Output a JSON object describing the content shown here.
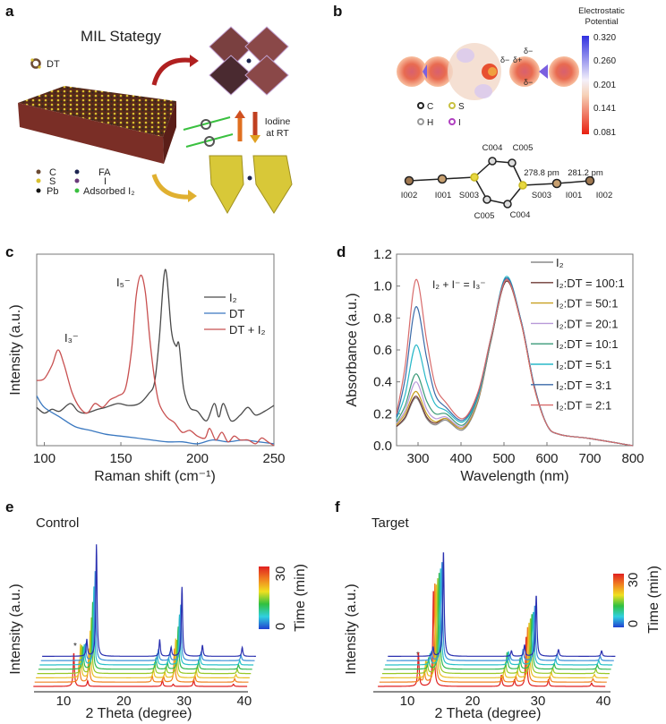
{
  "panels": {
    "a": {
      "label": "a",
      "title": "MIL Stategy",
      "dt_label": "DT",
      "iodine_label_line1": "Iodine",
      "iodine_label_line2": "at RT",
      "legend": {
        "c": "C",
        "s": "S",
        "pb": "Pb",
        "fa": "FA",
        "i": "I",
        "adsorbed": "Adsorbed I₂"
      },
      "colors": {
        "c": "#6b4a33",
        "s": "#d8c030",
        "pb": "#151515",
        "fa": "#1c2450",
        "i": "#6a3a7a",
        "adsorbed": "#3ac040",
        "slab": "#7a2e26"
      }
    },
    "b": {
      "label": "b",
      "colorbar_title_line1": "Electrostatic",
      "colorbar_title_line2": "Potential",
      "colorbar_ticks": [
        "0.320",
        "0.260",
        "0.201",
        "0.141",
        "0.081"
      ],
      "delta_labels": [
        "δ−",
        "δ+",
        "δ−",
        "δ−"
      ],
      "legend": {
        "c": "C",
        "s": "S",
        "h": "H",
        "i": "I"
      },
      "atoms": [
        "I002",
        "I001",
        "S003",
        "C004",
        "C005",
        "S003",
        "I001",
        "I002",
        "C005",
        "C004"
      ],
      "bond_lengths": [
        "278.8 pm",
        "281.2 pm"
      ]
    }
  },
  "chart_data": [
    {
      "panel": "c",
      "type": "line",
      "xlabel": "Raman shift (cm⁻¹)",
      "ylabel": "Intensity (a.u.)",
      "xlim": [
        95,
        250
      ],
      "xticks": [
        "100",
        "150",
        "200",
        "250"
      ],
      "annotations": [
        "I₃⁻",
        "I₅⁻"
      ],
      "legend_position": "top-right",
      "series": [
        {
          "name": "I₂",
          "color": "#4a4a4a",
          "points": [
            [
              95,
              0.2
            ],
            [
              100,
              0.17
            ],
            [
              105,
              0.19
            ],
            [
              110,
              0.18
            ],
            [
              117,
              0.22
            ],
            [
              122,
              0.18
            ],
            [
              127,
              0.17
            ],
            [
              135,
              0.19
            ],
            [
              140,
              0.2
            ],
            [
              148,
              0.22
            ],
            [
              155,
              0.21
            ],
            [
              162,
              0.22
            ],
            [
              168,
              0.27
            ],
            [
              172,
              0.33
            ],
            [
              175,
              0.55
            ],
            [
              179,
              0.92
            ],
            [
              183,
              0.6
            ],
            [
              186,
              0.52
            ],
            [
              188,
              0.53
            ],
            [
              191,
              0.3
            ],
            [
              195,
              0.2
            ],
            [
              200,
              0.18
            ],
            [
              206,
              0.13
            ],
            [
              211,
              0.22
            ],
            [
              214,
              0.15
            ],
            [
              217,
              0.22
            ],
            [
              222,
              0.13
            ],
            [
              228,
              0.16
            ],
            [
              233,
              0.2
            ],
            [
              238,
              0.16
            ],
            [
              244,
              0.18
            ],
            [
              250,
              0.21
            ]
          ]
        },
        {
          "name": "DT",
          "color": "#3a78c0",
          "points": [
            [
              95,
              0.26
            ],
            [
              100,
              0.2
            ],
            [
              110,
              0.15
            ],
            [
              120,
              0.1
            ],
            [
              130,
              0.08
            ],
            [
              140,
              0.06
            ],
            [
              150,
              0.05
            ],
            [
              160,
              0.04
            ],
            [
              170,
              0.03
            ],
            [
              180,
              0.02
            ],
            [
              190,
              0.02
            ],
            [
              200,
              0.01
            ],
            [
              210,
              0.03
            ],
            [
              220,
              0.02
            ],
            [
              230,
              0.03
            ],
            [
              240,
              0.02
            ],
            [
              250,
              0.01
            ]
          ]
        },
        {
          "name": "DT + I₂",
          "color": "#c85050",
          "points": [
            [
              95,
              0.34
            ],
            [
              100,
              0.35
            ],
            [
              105,
              0.42
            ],
            [
              109,
              0.5
            ],
            [
              113,
              0.42
            ],
            [
              118,
              0.28
            ],
            [
              123,
              0.2
            ],
            [
              128,
              0.17
            ],
            [
              133,
              0.22
            ],
            [
              138,
              0.2
            ],
            [
              143,
              0.24
            ],
            [
              148,
              0.26
            ],
            [
              153,
              0.3
            ],
            [
              157,
              0.5
            ],
            [
              160,
              0.78
            ],
            [
              163,
              0.89
            ],
            [
              166,
              0.8
            ],
            [
              169,
              0.55
            ],
            [
              172,
              0.35
            ],
            [
              175,
              0.22
            ],
            [
              180,
              0.15
            ],
            [
              185,
              0.12
            ],
            [
              190,
              0.07
            ],
            [
              195,
              0.08
            ],
            [
              200,
              0.05
            ],
            [
              205,
              0.04
            ],
            [
              208,
              0.09
            ],
            [
              212,
              0.03
            ],
            [
              216,
              0.07
            ],
            [
              220,
              0.02
            ],
            [
              224,
              0.05
            ],
            [
              228,
              0.03
            ],
            [
              233,
              0.03
            ],
            [
              238,
              0.01
            ],
            [
              242,
              0.04
            ],
            [
              246,
              0.02
            ],
            [
              250,
              0.0
            ]
          ]
        }
      ]
    },
    {
      "panel": "d",
      "type": "line",
      "xlabel": "Wavelength (nm)",
      "ylabel": "Absorbance  (a.u.)",
      "xlim": [
        250,
        800
      ],
      "ylim": [
        0,
        1.2
      ],
      "xticks": [
        "300",
        "400",
        "500",
        "600",
        "700",
        "800"
      ],
      "yticks": [
        "0.0",
        "0.2",
        "0.4",
        "0.6",
        "0.8",
        "1.0",
        "1.2"
      ],
      "annotation": "I₂ + I⁻ = I₃⁻",
      "legend_position": "top-right",
      "x": [
        250,
        270,
        295,
        320,
        340,
        365,
        405,
        440,
        470,
        505,
        540,
        570,
        600,
        630,
        700,
        800
      ],
      "series": [
        {
          "name": "I₂",
          "color": "#8a8a8a",
          "values": [
            0.12,
            0.17,
            0.3,
            0.17,
            0.13,
            0.16,
            0.1,
            0.28,
            0.66,
            1.03,
            0.77,
            0.37,
            0.13,
            0.07,
            0.045,
            0.0
          ]
        },
        {
          "name": "I₂:DT = 100:1",
          "color": "#6e3a34",
          "values": [
            0.12,
            0.18,
            0.31,
            0.18,
            0.14,
            0.17,
            0.11,
            0.29,
            0.66,
            1.03,
            0.77,
            0.37,
            0.13,
            0.07,
            0.045,
            0.0
          ]
        },
        {
          "name": "I₂:DT = 50:1",
          "color": "#c8a020",
          "values": [
            0.13,
            0.2,
            0.34,
            0.2,
            0.15,
            0.17,
            0.11,
            0.29,
            0.67,
            1.04,
            0.77,
            0.37,
            0.13,
            0.07,
            0.045,
            0.0
          ]
        },
        {
          "name": "I₂:DT = 20:1",
          "color": "#b89ad8",
          "values": [
            0.14,
            0.22,
            0.4,
            0.23,
            0.17,
            0.18,
            0.12,
            0.3,
            0.67,
            1.04,
            0.78,
            0.38,
            0.13,
            0.07,
            0.045,
            0.0
          ]
        },
        {
          "name": "I₂:DT = 10:1",
          "color": "#3a9a78",
          "values": [
            0.15,
            0.25,
            0.45,
            0.28,
            0.2,
            0.2,
            0.13,
            0.31,
            0.67,
            1.05,
            0.78,
            0.38,
            0.13,
            0.07,
            0.045,
            0.0
          ]
        },
        {
          "name": "I₂:DT = 5:1",
          "color": "#28b8c8",
          "values": [
            0.17,
            0.32,
            0.63,
            0.4,
            0.26,
            0.22,
            0.15,
            0.32,
            0.68,
            1.06,
            0.78,
            0.38,
            0.13,
            0.07,
            0.045,
            0.0
          ]
        },
        {
          "name": "I₂:DT = 3:1",
          "color": "#3a6aa8",
          "values": [
            0.18,
            0.42,
            0.87,
            0.55,
            0.32,
            0.24,
            0.16,
            0.33,
            0.68,
            1.05,
            0.78,
            0.38,
            0.13,
            0.07,
            0.045,
            0.0
          ]
        },
        {
          "name": "I₂:DT = 2:1",
          "color": "#d86a6a",
          "values": [
            0.2,
            0.5,
            1.04,
            0.66,
            0.38,
            0.27,
            0.17,
            0.34,
            0.68,
            1.04,
            0.77,
            0.37,
            0.13,
            0.07,
            0.045,
            0.0
          ]
        }
      ]
    },
    {
      "panel": "e",
      "type": "line",
      "title": "Control",
      "xlabel": "2 Theta (degree)",
      "ylabel": "Intensity (a.u.)",
      "xlim": [
        5,
        41
      ],
      "xticks": [
        "10",
        "20",
        "30",
        "40"
      ],
      "colorbar": {
        "label": "Time (min)",
        "ticks": [
          "30",
          "0"
        ],
        "colors": [
          "#e02020",
          "#f08020",
          "#f0e020",
          "#30c040",
          "#30d0e0",
          "#2040d0"
        ]
      },
      "marker_annotation": "*",
      "peak_positions": [
        11.7,
        12.4,
        14.0,
        24.5,
        26.4,
        28.2,
        31.6,
        38.2
      ],
      "traces": [
        {
          "color": "#2a30b0",
          "heights": [
            0,
            0.15,
            1.0,
            0.15,
            0.08,
            0.62,
            0.1,
            0.08
          ]
        },
        {
          "color": "#3a90d8",
          "heights": [
            0,
            0.15,
            0.8,
            0.1,
            0.07,
            0.5,
            0.08,
            0.05
          ]
        },
        {
          "color": "#28c0c8",
          "heights": [
            0,
            0.18,
            0.7,
            0.1,
            0.06,
            0.45,
            0.08,
            0.04
          ]
        },
        {
          "color": "#30b850",
          "heights": [
            0,
            0.2,
            0.6,
            0.1,
            0.06,
            0.38,
            0.08,
            0.04
          ]
        },
        {
          "color": "#98c828",
          "heights": [
            0,
            0.25,
            0.5,
            0.1,
            0.06,
            0.3,
            0.07,
            0.04
          ]
        },
        {
          "color": "#e8c020",
          "heights": [
            0,
            0.3,
            0.42,
            0.08,
            0.05,
            0.35,
            0.07,
            0.03
          ]
        },
        {
          "color": "#f08020",
          "heights": [
            0,
            0.2,
            0.3,
            0.06,
            0.05,
            0.3,
            0.06,
            0.03
          ]
        },
        {
          "color": "#e02020",
          "heights": [
            0.3,
            0,
            0.05,
            0,
            0.06,
            0.02,
            0.06,
            0.02
          ]
        }
      ]
    },
    {
      "panel": "f",
      "type": "line",
      "title": "Target",
      "xlabel": "2 Theta (degree)",
      "ylabel": "Intensity (a.u.)",
      "xlim": [
        5,
        41
      ],
      "xticks": [
        "10",
        "20",
        "30",
        "40"
      ],
      "colorbar": {
        "label": "Time (min)",
        "ticks": [
          "30",
          "0"
        ],
        "colors": [
          "#e02020",
          "#f08020",
          "#f0e020",
          "#30c040",
          "#30d0e0",
          "#2040d0"
        ]
      },
      "marker_annotation": "*",
      "peak_positions": [
        11.7,
        12.4,
        14.0,
        24.4,
        26.4,
        28.2,
        31.6,
        38.2
      ],
      "traces": [
        {
          "color": "#2a30b0",
          "heights": [
            0,
            0.08,
            0.95,
            0.05,
            0.1,
            0.55,
            0.06,
            0.05
          ]
        },
        {
          "color": "#3a90d8",
          "heights": [
            0,
            0.08,
            0.9,
            0.05,
            0.1,
            0.5,
            0.06,
            0.04
          ]
        },
        {
          "color": "#28c0c8",
          "heights": [
            0,
            0.1,
            0.88,
            0.12,
            0.08,
            0.48,
            0.05,
            0.04
          ]
        },
        {
          "color": "#30b850",
          "heights": [
            0,
            0.1,
            0.88,
            0.15,
            0.1,
            0.5,
            0.05,
            0.04
          ]
        },
        {
          "color": "#98c828",
          "heights": [
            0,
            0.1,
            0.87,
            0.1,
            0.08,
            0.5,
            0.05,
            0.04
          ]
        },
        {
          "color": "#e8c020",
          "heights": [
            0,
            0.15,
            0.85,
            0.08,
            0.06,
            0.5,
            0.05,
            0.03
          ]
        },
        {
          "color": "#f08020",
          "heights": [
            0.05,
            0.1,
            0.9,
            0.06,
            0.05,
            0.5,
            0.05,
            0.03
          ]
        },
        {
          "color": "#e02020",
          "heights": [
            0.3,
            0,
            0.87,
            0.1,
            0.06,
            0.45,
            0.06,
            0.03
          ]
        }
      ]
    }
  ]
}
